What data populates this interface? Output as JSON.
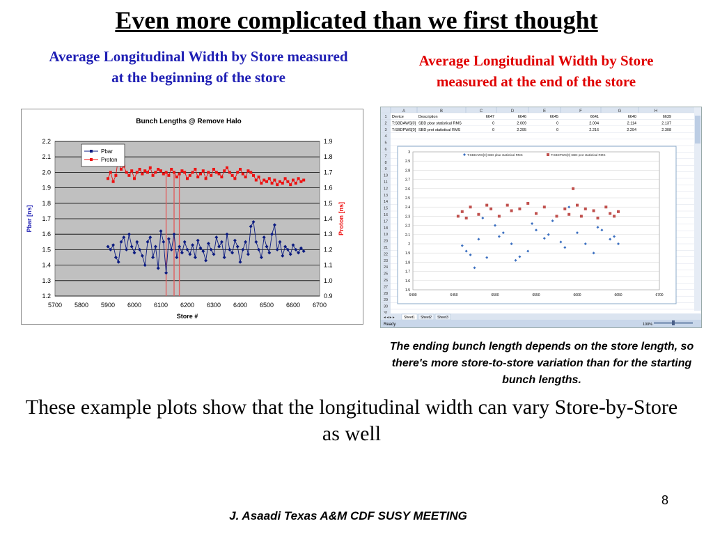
{
  "slide": {
    "title": "Even more complicated than we first thought",
    "left_caption": "Average Longitudinal Width by Store measured at the beginning of the store",
    "right_caption": "Average Longitudinal Width by Store measured at the end of the store",
    "note": "The ending bunch length depends on the store length, so there's more store-to-store variation than for the starting bunch lengths.",
    "body": "These example plots show that the longitudinal width can vary Store-by-Store as well",
    "page_number": "8",
    "footer": "J. Asaadi Texas A&M CDF SUSY MEETING"
  },
  "colors": {
    "left_caption": "#1f1fb4",
    "right_caption": "#e00000",
    "pbar": "#0a1a80",
    "proton": "#ee1111",
    "plot_bg": "#c0c0c0",
    "excel_series1": "#3b6fc0",
    "excel_series2": "#c0504d"
  },
  "chart_data": [
    {
      "type": "line",
      "title": "Bunch Lengths @ Remove Halo",
      "xlabel": "Store #",
      "ylabel_left": "Pbar [ns]",
      "ylabel_right": "Proton [ns]",
      "xlim": [
        5700,
        6700
      ],
      "ylim_left": [
        1.2,
        2.2
      ],
      "ylim_right": [
        0.9,
        1.9
      ],
      "x_ticks": [
        "5700",
        "5800",
        "5900",
        "6000",
        "6100",
        "6200",
        "6300",
        "6400",
        "6500",
        "6600",
        "6700"
      ],
      "y_ticks_left": [
        "2.2",
        "2.1",
        "2.0",
        "1.9",
        "1.8",
        "1.7",
        "1.6",
        "1.5",
        "1.4",
        "1.3",
        "1.2"
      ],
      "y_ticks_right": [
        "1.9",
        "1.8",
        "1.7",
        "1.6",
        "1.5",
        "1.4",
        "1.3",
        "1.2",
        "1.1",
        "1.0",
        "0.9"
      ],
      "legend": [
        "Pbar",
        "Proton"
      ],
      "legend_position": "top-left",
      "grid": true,
      "series": [
        {
          "name": "Pbar",
          "axis": "left",
          "x": [
            5900,
            5910,
            5920,
            5930,
            5940,
            5950,
            5960,
            5970,
            5980,
            5990,
            6000,
            6010,
            6020,
            6030,
            6040,
            6050,
            6060,
            6070,
            6080,
            6090,
            6100,
            6110,
            6120,
            6130,
            6140,
            6150,
            6160,
            6170,
            6180,
            6190,
            6200,
            6210,
            6220,
            6230,
            6240,
            6250,
            6260,
            6270,
            6280,
            6290,
            6300,
            6310,
            6320,
            6330,
            6340,
            6350,
            6360,
            6370,
            6380,
            6390,
            6400,
            6410,
            6420,
            6430,
            6440,
            6450,
            6460,
            6470,
            6480,
            6490,
            6500,
            6510,
            6520,
            6530,
            6540,
            6550,
            6560,
            6570,
            6580,
            6590,
            6600,
            6610,
            6620,
            6630,
            6640
          ],
          "values": [
            1.52,
            1.5,
            1.53,
            1.45,
            1.42,
            1.55,
            1.58,
            1.5,
            1.6,
            1.52,
            1.48,
            1.55,
            1.5,
            1.46,
            1.4,
            1.55,
            1.58,
            1.45,
            1.52,
            1.38,
            1.62,
            1.55,
            1.35,
            1.57,
            1.5,
            1.6,
            1.45,
            1.52,
            1.48,
            1.55,
            1.5,
            1.47,
            1.53,
            1.45,
            1.56,
            1.51,
            1.49,
            1.43,
            1.54,
            1.5,
            1.47,
            1.58,
            1.52,
            1.55,
            1.45,
            1.6,
            1.5,
            1.48,
            1.56,
            1.52,
            1.42,
            1.5,
            1.55,
            1.47,
            1.65,
            1.68,
            1.55,
            1.5,
            1.45,
            1.58,
            1.52,
            1.48,
            1.6,
            1.66,
            1.5,
            1.55,
            1.46,
            1.52,
            1.5,
            1.47,
            1.53,
            1.5,
            1.48,
            1.51,
            1.49
          ]
        },
        {
          "name": "Proton",
          "axis": "right",
          "x": [
            5900,
            5910,
            5920,
            5930,
            5940,
            5950,
            5960,
            5970,
            5980,
            5990,
            6000,
            6010,
            6020,
            6030,
            6040,
            6050,
            6060,
            6070,
            6080,
            6090,
            6100,
            6110,
            6120,
            6130,
            6140,
            6150,
            6160,
            6170,
            6180,
            6190,
            6200,
            6210,
            6220,
            6230,
            6240,
            6250,
            6260,
            6270,
            6280,
            6290,
            6300,
            6310,
            6320,
            6330,
            6340,
            6350,
            6360,
            6370,
            6380,
            6390,
            6400,
            6410,
            6420,
            6430,
            6440,
            6450,
            6460,
            6470,
            6480,
            6490,
            6500,
            6510,
            6520,
            6530,
            6540,
            6550,
            6560,
            6570,
            6580,
            6590,
            6600,
            6610,
            6620,
            6630,
            6640
          ],
          "values": [
            1.66,
            1.7,
            1.64,
            1.68,
            1.8,
            1.72,
            1.74,
            1.7,
            1.68,
            1.71,
            1.66,
            1.7,
            1.72,
            1.69,
            1.71,
            1.7,
            1.73,
            1.68,
            1.7,
            1.72,
            1.71,
            1.69,
            1.7,
            1.68,
            1.72,
            1.7,
            1.67,
            1.69,
            1.71,
            1.7,
            1.66,
            1.68,
            1.7,
            1.72,
            1.67,
            1.69,
            1.71,
            1.66,
            1.7,
            1.68,
            1.72,
            1.7,
            1.69,
            1.67,
            1.71,
            1.73,
            1.7,
            1.68,
            1.66,
            1.7,
            1.72,
            1.69,
            1.67,
            1.71,
            1.7,
            1.68,
            1.65,
            1.67,
            1.63,
            1.65,
            1.64,
            1.66,
            1.63,
            1.65,
            1.62,
            1.64,
            1.63,
            1.66,
            1.64,
            1.62,
            1.65,
            1.63,
            1.66,
            1.64,
            1.65
          ]
        }
      ]
    },
    {
      "type": "scatter",
      "xlim": [
        6400,
        6700
      ],
      "ylim": [
        1.5,
        3
      ],
      "x_ticks": [
        "6400",
        "6450",
        "6500",
        "6550",
        "6600",
        "6650",
        "6700"
      ],
      "y_ticks": [
        "3",
        "2.9",
        "2.8",
        "2.7",
        "2.6",
        "2.5",
        "2.4",
        "2.3",
        "2.2",
        "2.1",
        "2",
        "1.9",
        "1.8",
        "1.7",
        "1.6",
        "1.5"
      ],
      "legend_position": "top",
      "series": [
        {
          "name": "T:SBDAWS[0] SBD pbar statistical RMS",
          "x": [
            6460,
            6470,
            6475,
            6480,
            6490,
            6500,
            6510,
            6520,
            6530,
            6540,
            6550,
            6560,
            6570,
            6580,
            6590,
            6600,
            6610,
            6620,
            6630,
            6640,
            6650,
            6465,
            6485,
            6505,
            6525,
            6545,
            6565,
            6585,
            6605,
            6625,
            6645
          ],
          "values": [
            1.98,
            1.88,
            1.74,
            2.05,
            1.85,
            2.2,
            2.12,
            2.0,
            1.86,
            1.92,
            2.15,
            2.06,
            2.25,
            2.02,
            2.4,
            2.12,
            2.0,
            1.9,
            2.15,
            2.05,
            2.0,
            1.92,
            2.28,
            2.08,
            1.82,
            2.22,
            2.1,
            1.96,
            2.3,
            2.18,
            2.08
          ]
        },
        {
          "name": "T:SBDPWS[0] SBD prot statistical RMS",
          "x": [
            6455,
            6460,
            6465,
            6470,
            6480,
            6490,
            6495,
            6505,
            6515,
            6520,
            6530,
            6540,
            6550,
            6560,
            6575,
            6585,
            6590,
            6595,
            6600,
            6605,
            6610,
            6620,
            6625,
            6635,
            6640,
            6645,
            6650
          ],
          "values": [
            2.3,
            2.35,
            2.28,
            2.4,
            2.32,
            2.42,
            2.38,
            2.3,
            2.42,
            2.36,
            2.38,
            2.44,
            2.33,
            2.4,
            2.3,
            2.38,
            2.32,
            2.6,
            2.42,
            2.3,
            2.38,
            2.36,
            2.28,
            2.4,
            2.33,
            2.3,
            2.35
          ]
        }
      ]
    }
  ],
  "excel": {
    "columns": [
      "A",
      "B",
      "C",
      "D",
      "E",
      "F",
      "G",
      "H"
    ],
    "row_numbers": [
      "1",
      "2",
      "3",
      "4",
      "5",
      "6",
      "7",
      "8",
      "9",
      "10",
      "11",
      "12",
      "13",
      "14",
      "15",
      "16",
      "17",
      "18",
      "19",
      "20",
      "21",
      "22",
      "23",
      "24",
      "25",
      "26",
      "27",
      "28",
      "29",
      "30",
      "31"
    ],
    "rows": [
      [
        "Device",
        "Description",
        "6647",
        "6646",
        "6645",
        "6641",
        "6640",
        "6639"
      ],
      [
        "T:SBDAWS[0]",
        "SBD pbar statistical RMS",
        "0",
        "2.009",
        "0",
        "2.004",
        "2.114",
        "2.137"
      ],
      [
        "T:SBDPWS[0]",
        "SBD prot statistical RMS",
        "0",
        "2.295",
        "0",
        "2.216",
        "2.294",
        "2.308"
      ]
    ],
    "sheet_tabs": [
      "Sheet1",
      "Sheet2",
      "Sheet3"
    ],
    "status": "Ready",
    "zoom": "100%"
  }
}
